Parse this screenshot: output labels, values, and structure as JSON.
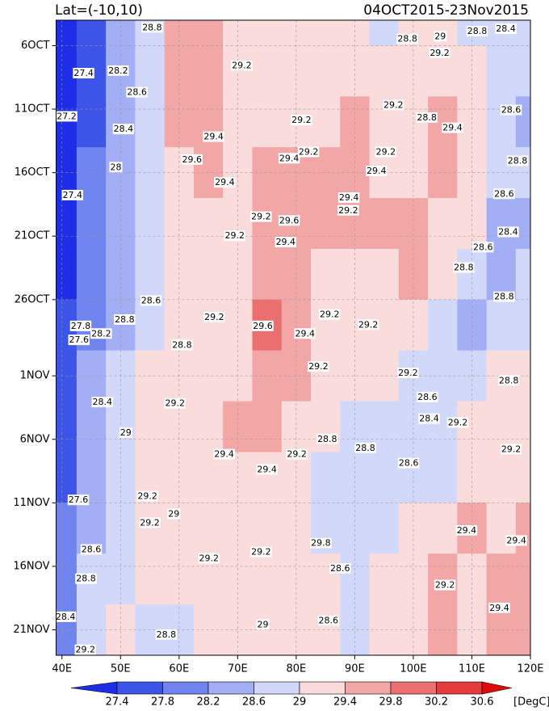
{
  "chart_data": {
    "type": "heatmap",
    "title_left": "Lat=(-10,10)",
    "title_right": "04OCT2015-23Nov2015",
    "unit_label": "[DegC]",
    "xlim": [
      39,
      120
    ],
    "xticks": [
      {
        "value": 40,
        "label": "40E"
      },
      {
        "value": 50,
        "label": "50E"
      },
      {
        "value": 60,
        "label": "60E"
      },
      {
        "value": 70,
        "label": "70E"
      },
      {
        "value": 80,
        "label": "80E"
      },
      {
        "value": 90,
        "label": "90E"
      },
      {
        "value": 100,
        "label": "100E"
      },
      {
        "value": 110,
        "label": "110E"
      },
      {
        "value": 120,
        "label": "120E"
      }
    ],
    "ylim": [
      0,
      50
    ],
    "yticks": [
      {
        "value": 2,
        "label": "6OCT"
      },
      {
        "value": 7,
        "label": "11OCT"
      },
      {
        "value": 12,
        "label": "16OCT"
      },
      {
        "value": 17,
        "label": "21OCT"
      },
      {
        "value": 22,
        "label": "26OCT"
      },
      {
        "value": 28,
        "label": "1NOV"
      },
      {
        "value": 33,
        "label": "6NOV"
      },
      {
        "value": 38,
        "label": "11NOV"
      },
      {
        "value": 43,
        "label": "16NOV"
      },
      {
        "value": 48,
        "label": "21NOV"
      }
    ],
    "grid": true,
    "levels": [
      27.4,
      27.8,
      28.2,
      28.6,
      29,
      29.4,
      29.8,
      30.2,
      30.6
    ],
    "colors": [
      "#1e2ee6",
      "#3c55e8",
      "#6f84ef",
      "#a2aff4",
      "#d2d8fa",
      "#fadcdc",
      "#f2a6a6",
      "#ea7070",
      "#e43c3c",
      "#e00a0a"
    ],
    "x": [
      40,
      45,
      50,
      55,
      60,
      65,
      70,
      75,
      80,
      85,
      90,
      95,
      100,
      105,
      110,
      115,
      120
    ],
    "y": [
      0,
      4,
      8,
      12,
      16,
      20,
      24,
      28,
      32,
      36,
      40,
      44,
      48
    ],
    "z": [
      [
        27.2,
        27.6,
        28.2,
        28.8,
        29.5,
        29.4,
        29.1,
        29.0,
        29.1,
        29.0,
        29.0,
        28.9,
        29.0,
        29.1,
        28.9,
        28.7,
        28.6
      ],
      [
        27.2,
        27.5,
        28.2,
        28.7,
        29.5,
        29.5,
        29.2,
        29.0,
        29.1,
        29.1,
        29.2,
        29.1,
        29.2,
        29.3,
        29.0,
        28.8,
        28.6
      ],
      [
        27.2,
        27.6,
        28.3,
        28.8,
        29.5,
        29.4,
        29.2,
        29.1,
        29.2,
        29.2,
        29.4,
        29.2,
        29.2,
        29.5,
        29.2,
        28.7,
        28.5
      ],
      [
        27.3,
        27.8,
        28.4,
        28.8,
        29.3,
        29.4,
        29.1,
        29.4,
        29.6,
        29.6,
        29.5,
        29.3,
        29.3,
        29.5,
        29.1,
        28.7,
        28.6
      ],
      [
        27.3,
        27.8,
        28.5,
        28.7,
        29.1,
        29.2,
        29.2,
        29.7,
        29.5,
        29.4,
        29.4,
        29.5,
        29.4,
        29.3,
        29.0,
        28.5,
        28.4
      ],
      [
        27.3,
        27.8,
        28.4,
        28.6,
        29.0,
        29.1,
        29.2,
        29.6,
        29.4,
        29.3,
        29.2,
        29.3,
        29.6,
        29.3,
        28.8,
        28.4,
        28.6
      ],
      [
        27.4,
        28.0,
        28.5,
        28.8,
        29.0,
        29.1,
        29.3,
        29.8,
        29.5,
        29.3,
        29.2,
        29.1,
        29.0,
        28.8,
        28.5,
        28.8,
        28.9
      ],
      [
        27.6,
        28.2,
        28.8,
        29.0,
        29.1,
        29.2,
        29.3,
        29.7,
        29.4,
        29.2,
        29.1,
        29.0,
        28.9,
        28.6,
        28.8,
        29.0,
        29.0
      ],
      [
        27.7,
        28.4,
        28.9,
        29.1,
        29.2,
        29.3,
        29.4,
        29.6,
        29.3,
        29.0,
        28.9,
        28.8,
        28.6,
        28.8,
        29.0,
        29.1,
        29.2
      ],
      [
        27.7,
        28.3,
        28.9,
        29.2,
        29.3,
        29.2,
        29.2,
        29.3,
        29.1,
        28.8,
        28.8,
        28.7,
        28.6,
        28.9,
        29.0,
        29.2,
        29.3
      ],
      [
        27.8,
        28.4,
        28.9,
        29.2,
        29.1,
        29.1,
        29.2,
        29.2,
        29.2,
        28.9,
        28.7,
        28.9,
        29.0,
        29.2,
        29.4,
        29.3,
        29.5
      ],
      [
        27.9,
        28.6,
        28.8,
        29.0,
        29.0,
        29.0,
        29.1,
        29.3,
        29.2,
        29.0,
        28.8,
        29.0,
        29.3,
        29.4,
        29.2,
        29.4,
        29.7
      ],
      [
        28.1,
        28.8,
        29.2,
        28.7,
        28.8,
        29.0,
        29.0,
        29.2,
        29.3,
        29.1,
        28.9,
        29.0,
        29.3,
        29.4,
        29.3,
        29.5,
        29.5
      ]
    ],
    "contour_labels": [
      {
        "text": "28.8",
        "x": 55.4,
        "y": 0.6
      },
      {
        "text": "27.4",
        "x": 43.7,
        "y": 4.2
      },
      {
        "text": "28.2",
        "x": 49.6,
        "y": 4.0
      },
      {
        "text": "28.6",
        "x": 52.8,
        "y": 5.7
      },
      {
        "text": "29.2",
        "x": 70.7,
        "y": 3.6
      },
      {
        "text": "27.2",
        "x": 40.8,
        "y": 7.6
      },
      {
        "text": "28.4",
        "x": 50.5,
        "y": 8.6
      },
      {
        "text": "29.4",
        "x": 65.9,
        "y": 9.2
      },
      {
        "text": "29.6",
        "x": 62.2,
        "y": 11.0
      },
      {
        "text": "28",
        "x": 49.2,
        "y": 11.6
      },
      {
        "text": "27.4",
        "x": 41.8,
        "y": 13.8
      },
      {
        "text": "29.4",
        "x": 67.8,
        "y": 12.8
      },
      {
        "text": "29.2",
        "x": 80.9,
        "y": 7.9
      },
      {
        "text": "29.4",
        "x": 78.8,
        "y": 10.9
      },
      {
        "text": "29.2",
        "x": 82.1,
        "y": 10.4
      },
      {
        "text": "29.2",
        "x": 74.0,
        "y": 15.5
      },
      {
        "text": "29.6",
        "x": 78.8,
        "y": 15.8
      },
      {
        "text": "29.4",
        "x": 78.2,
        "y": 17.5
      },
      {
        "text": "29.2",
        "x": 69.5,
        "y": 17.0
      },
      {
        "text": "29.4",
        "x": 89.0,
        "y": 14.0
      },
      {
        "text": "29.2",
        "x": 88.9,
        "y": 15.0
      },
      {
        "text": "29.4",
        "x": 93.7,
        "y": 11.9
      },
      {
        "text": "29.2",
        "x": 95.3,
        "y": 10.4
      },
      {
        "text": "28.8",
        "x": 99.0,
        "y": 1.5
      },
      {
        "text": "29",
        "x": 104.6,
        "y": 1.3
      },
      {
        "text": "28.8",
        "x": 110.9,
        "y": 0.9
      },
      {
        "text": "28.4",
        "x": 115.8,
        "y": 0.7
      },
      {
        "text": "29.2",
        "x": 104.5,
        "y": 2.6
      },
      {
        "text": "29.2",
        "x": 96.6,
        "y": 6.7
      },
      {
        "text": "28.8",
        "x": 102.3,
        "y": 7.7
      },
      {
        "text": "28.6",
        "x": 116.7,
        "y": 7.1
      },
      {
        "text": "29.4",
        "x": 106.7,
        "y": 8.5
      },
      {
        "text": "28.8",
        "x": 117.8,
        "y": 11.1
      },
      {
        "text": "28.6",
        "x": 115.5,
        "y": 13.7
      },
      {
        "text": "28.4",
        "x": 116.2,
        "y": 16.7
      },
      {
        "text": "28.6",
        "x": 111.9,
        "y": 17.9
      },
      {
        "text": "28.8",
        "x": 108.6,
        "y": 19.5
      },
      {
        "text": "28.8",
        "x": 115.5,
        "y": 21.8
      },
      {
        "text": "29.2",
        "x": 85.7,
        "y": 23.2
      },
      {
        "text": "29.2",
        "x": 92.3,
        "y": 24.0
      },
      {
        "text": "28.6",
        "x": 55.2,
        "y": 22.1
      },
      {
        "text": "28.8",
        "x": 50.7,
        "y": 23.6
      },
      {
        "text": "27.8",
        "x": 43.2,
        "y": 24.1
      },
      {
        "text": "27.6",
        "x": 42.9,
        "y": 25.2
      },
      {
        "text": "28.2",
        "x": 46.7,
        "y": 24.7
      },
      {
        "text": "28.8",
        "x": 60.5,
        "y": 25.6
      },
      {
        "text": "29.2",
        "x": 66.0,
        "y": 23.4
      },
      {
        "text": "29.6",
        "x": 74.3,
        "y": 24.1
      },
      {
        "text": "29.4",
        "x": 81.5,
        "y": 24.7
      },
      {
        "text": "29.2",
        "x": 83.8,
        "y": 27.3
      },
      {
        "text": "29.2",
        "x": 99.1,
        "y": 27.8
      },
      {
        "text": "28.8",
        "x": 116.3,
        "y": 28.4
      },
      {
        "text": "28.6",
        "x": 102.4,
        "y": 29.7
      },
      {
        "text": "28.4",
        "x": 102.7,
        "y": 31.4
      },
      {
        "text": "29.2",
        "x": 107.6,
        "y": 31.7
      },
      {
        "text": "29.2",
        "x": 59.3,
        "y": 30.2
      },
      {
        "text": "28.4",
        "x": 46.9,
        "y": 30.1
      },
      {
        "text": "29",
        "x": 50.9,
        "y": 32.5
      },
      {
        "text": "28.8",
        "x": 85.3,
        "y": 33.0
      },
      {
        "text": "28.8",
        "x": 91.8,
        "y": 33.7
      },
      {
        "text": "29.4",
        "x": 67.7,
        "y": 34.2
      },
      {
        "text": "29.4",
        "x": 75.0,
        "y": 35.4
      },
      {
        "text": "29.2",
        "x": 80.1,
        "y": 34.2
      },
      {
        "text": "28.6",
        "x": 99.2,
        "y": 34.9
      },
      {
        "text": "29.2",
        "x": 116.7,
        "y": 33.8
      },
      {
        "text": "27.6",
        "x": 42.8,
        "y": 37.8
      },
      {
        "text": "29.2",
        "x": 54.6,
        "y": 37.5
      },
      {
        "text": "29.2",
        "x": 55.0,
        "y": 39.6
      },
      {
        "text": "29",
        "x": 59.1,
        "y": 38.9
      },
      {
        "text": "28.6",
        "x": 45.0,
        "y": 41.7
      },
      {
        "text": "29.2",
        "x": 74.0,
        "y": 41.9
      },
      {
        "text": "29.8",
        "x": 84.2,
        "y": 41.2
      },
      {
        "text": "28.6",
        "x": 87.5,
        "y": 43.2
      },
      {
        "text": "29.4",
        "x": 109.1,
        "y": 40.2
      },
      {
        "text": "29.4",
        "x": 117.6,
        "y": 41.0
      },
      {
        "text": "29.2",
        "x": 65.1,
        "y": 42.4
      },
      {
        "text": "28.8",
        "x": 44.1,
        "y": 44.0
      },
      {
        "text": "29.2",
        "x": 105.4,
        "y": 44.5
      },
      {
        "text": "29.4",
        "x": 114.7,
        "y": 46.3
      },
      {
        "text": "28.4",
        "x": 40.6,
        "y": 47.0
      },
      {
        "text": "29.2",
        "x": 44.0,
        "y": 49.6
      },
      {
        "text": "28.8",
        "x": 57.8,
        "y": 48.4
      },
      {
        "text": "28.6",
        "x": 85.5,
        "y": 47.3
      },
      {
        "text": "29",
        "x": 74.3,
        "y": 47.6
      }
    ]
  }
}
